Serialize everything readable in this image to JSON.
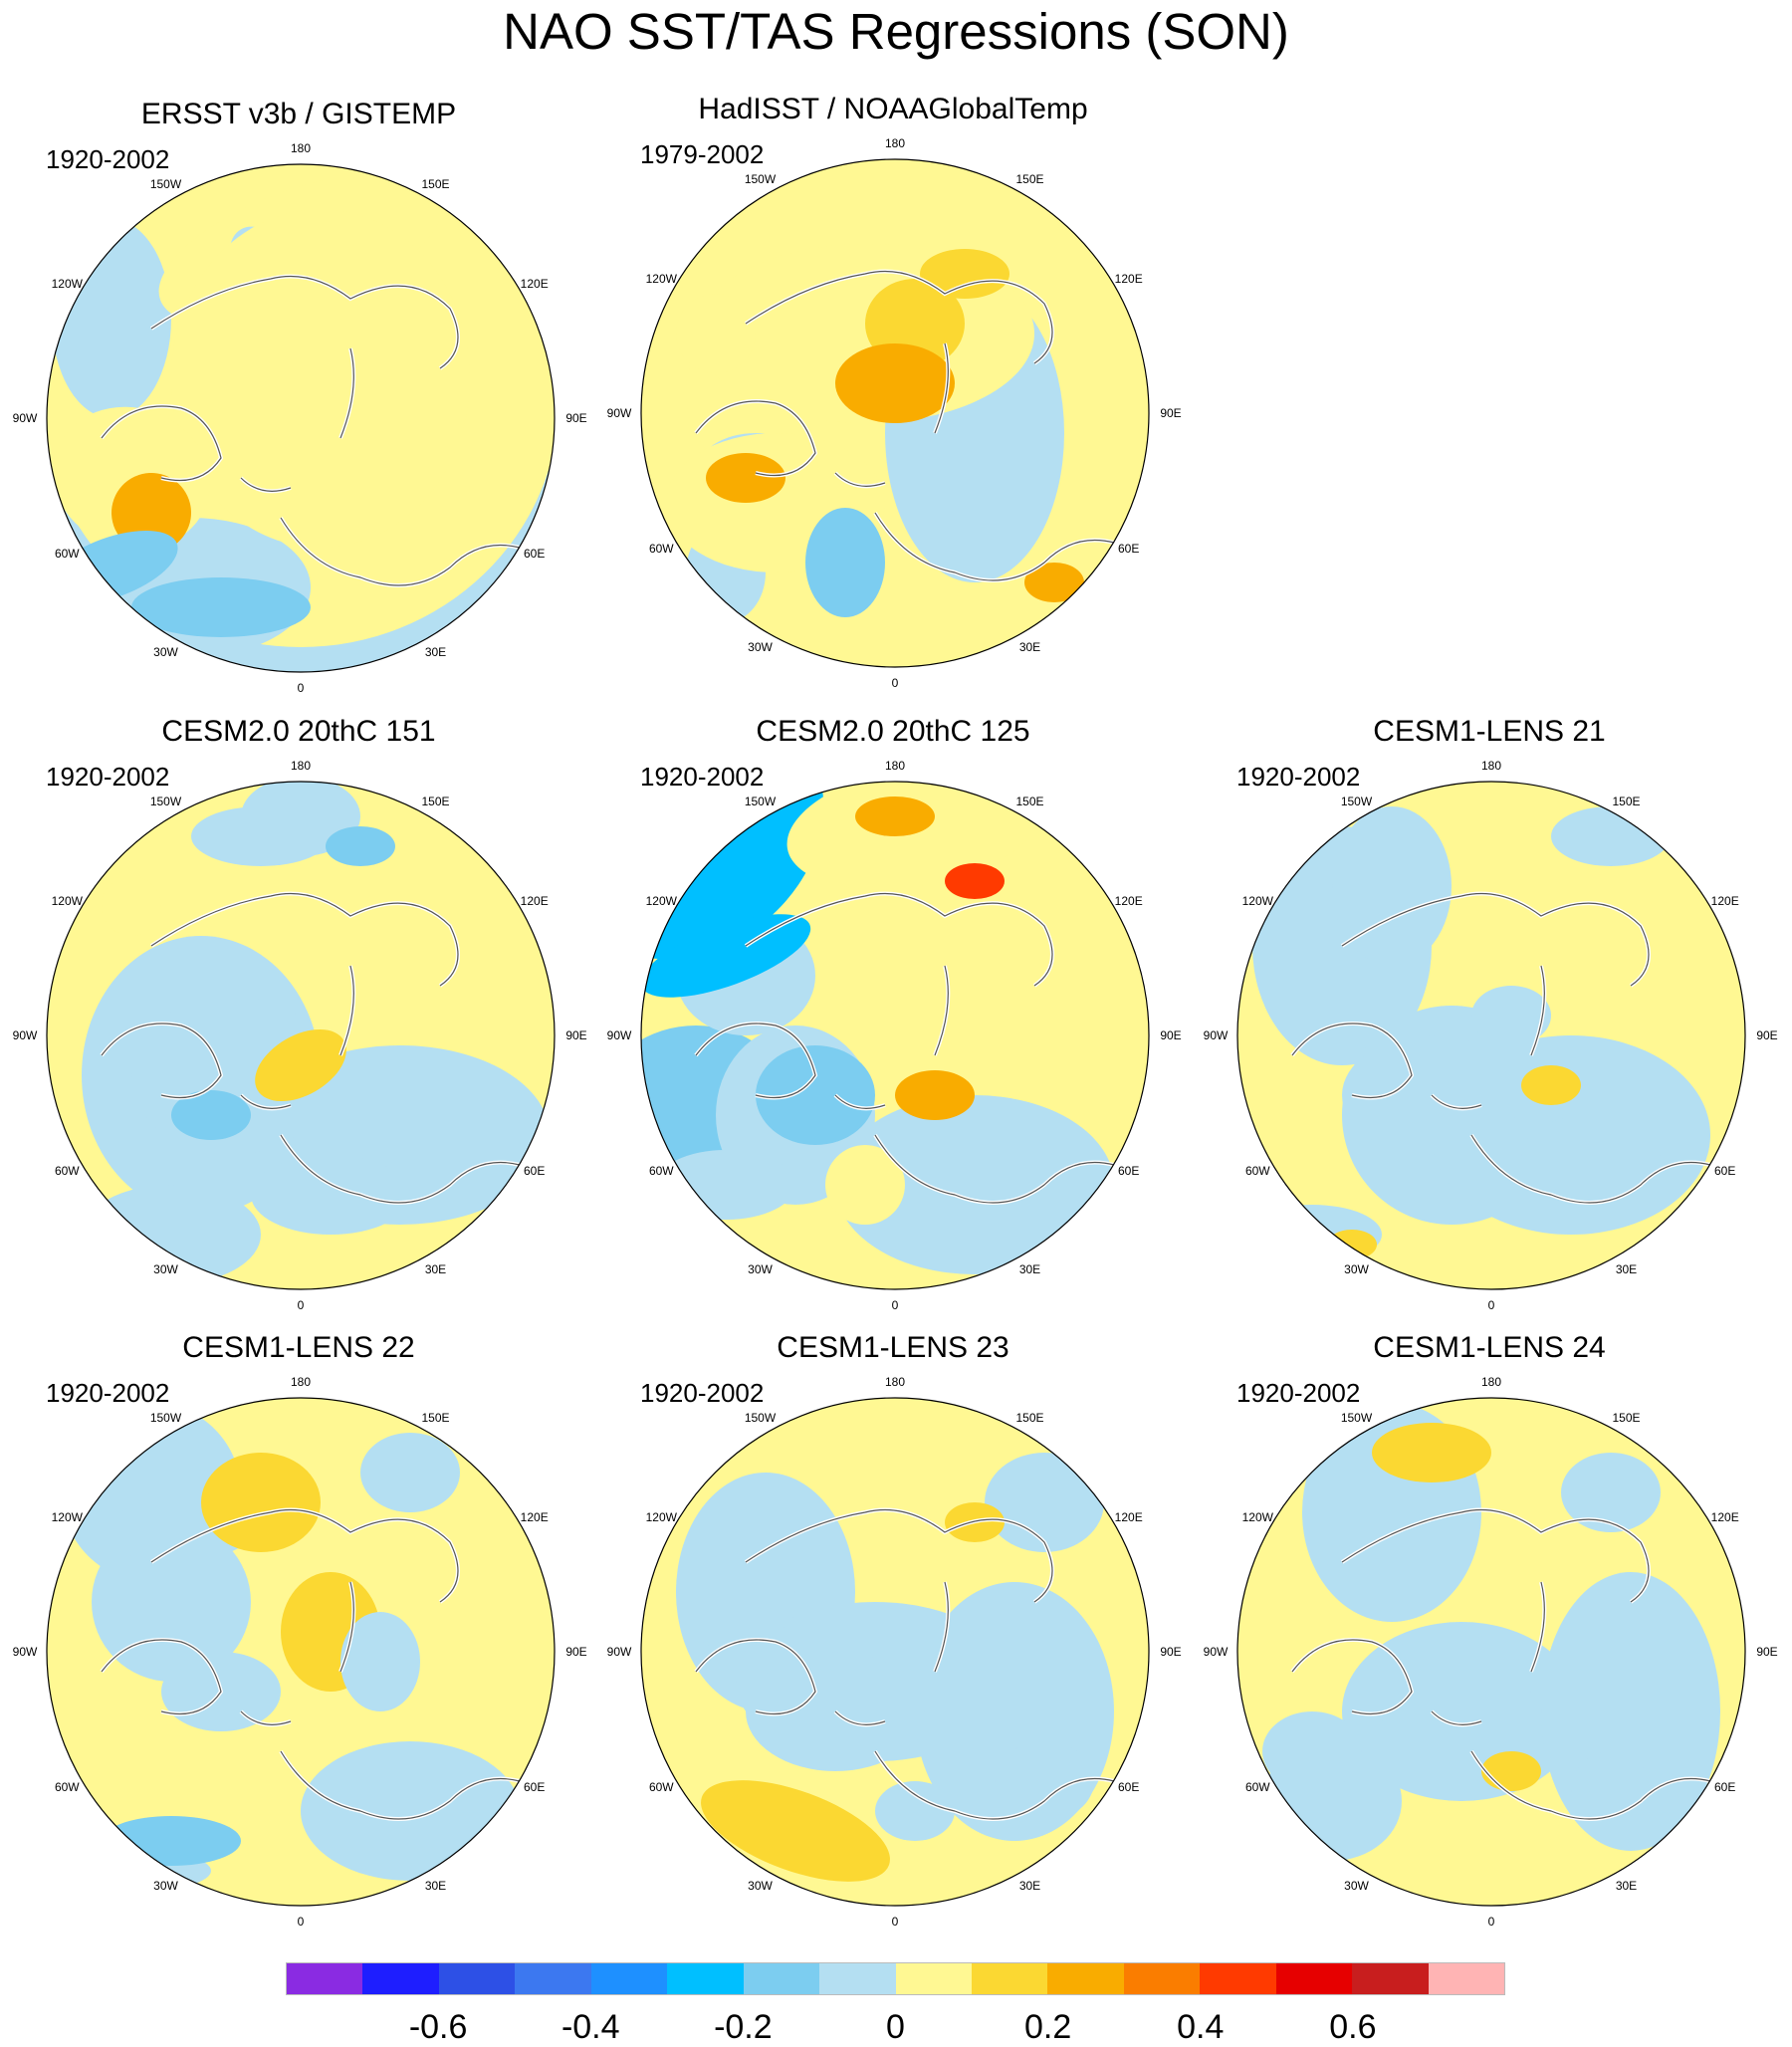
{
  "title": "NAO SST/TAS Regressions (SON)",
  "colorbar": {
    "colors": [
      "#8a2be2",
      "#1e1eff",
      "#2d50e6",
      "#3c78f0",
      "#1e90ff",
      "#00bfff",
      "#7ccdf0",
      "#b4dff2",
      "#fff893",
      "#fbd832",
      "#f9ac00",
      "#fa7d00",
      "#ff3a00",
      "#e60000",
      "#c81e1e",
      "#ffb4b4"
    ],
    "tick_labels": [
      "-0.6",
      "-0.4",
      "-0.2",
      "0",
      "0.2",
      "0.4",
      "0.6"
    ]
  },
  "lon_labels": [
    "180",
    "150E",
    "120E",
    "90E",
    "60E",
    "30E",
    "0",
    "30W",
    "60W",
    "90W",
    "120W",
    "150W"
  ],
  "panels": [
    {
      "title": "ERSST v3b / GISTEMP",
      "period": "1920-2002"
    },
    {
      "title": "HadISST / NOAAGlobalTemp",
      "period": "1979-2002"
    },
    {
      "title": "CESM2.0 20thC 151",
      "period": "1920-2002"
    },
    {
      "title": "CESM2.0 20thC 125",
      "period": "1920-2002"
    },
    {
      "title": "CESM1-LENS 21",
      "period": "1920-2002"
    },
    {
      "title": "CESM1-LENS 22",
      "period": "1920-2002"
    },
    {
      "title": "CESM1-LENS 23",
      "period": "1920-2002"
    },
    {
      "title": "CESM1-LENS 24",
      "period": "1920-2002"
    }
  ]
}
